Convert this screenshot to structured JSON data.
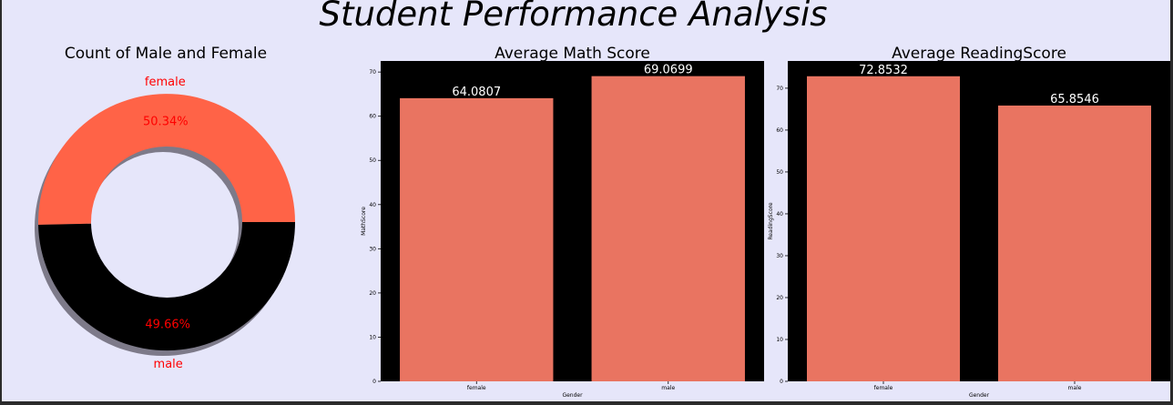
{
  "title": "Student Performance Analysis",
  "chart_data": [
    {
      "type": "pie",
      "title": "Count of Male and Female",
      "donut": true,
      "slices": [
        {
          "label": "female",
          "percent": 50.34,
          "pct_label": "50.34%",
          "color": "#ff6347"
        },
        {
          "label": "male",
          "percent": 49.66,
          "pct_label": "49.66%",
          "color": "#000000"
        }
      ],
      "label_color": "#ff0000",
      "shadow": true
    },
    {
      "type": "bar",
      "title": "Average Math Score",
      "categories": [
        "female",
        "male"
      ],
      "values": [
        64.0807,
        69.0699
      ],
      "value_labels": [
        "64.0807",
        "69.0699"
      ],
      "xlabel": "Gender",
      "ylabel": "MathScore",
      "yticks": [
        "0",
        "10",
        "20",
        "30",
        "40",
        "50",
        "60",
        "70"
      ],
      "ylim": [
        0,
        72.5
      ],
      "bar_color": "#e97461",
      "background": "#000000"
    },
    {
      "type": "bar",
      "title": "Average ReadingScore",
      "categories": [
        "female",
        "male"
      ],
      "values": [
        72.8532,
        65.8546
      ],
      "value_labels": [
        "72.8532",
        "65.8546"
      ],
      "xlabel": "Gender",
      "ylabel": "ReadingScore",
      "yticks": [
        "0",
        "10",
        "20",
        "30",
        "40",
        "50",
        "60",
        "70"
      ],
      "ylim": [
        0,
        76.5
      ],
      "bar_color": "#e97461",
      "background": "#000000"
    }
  ]
}
